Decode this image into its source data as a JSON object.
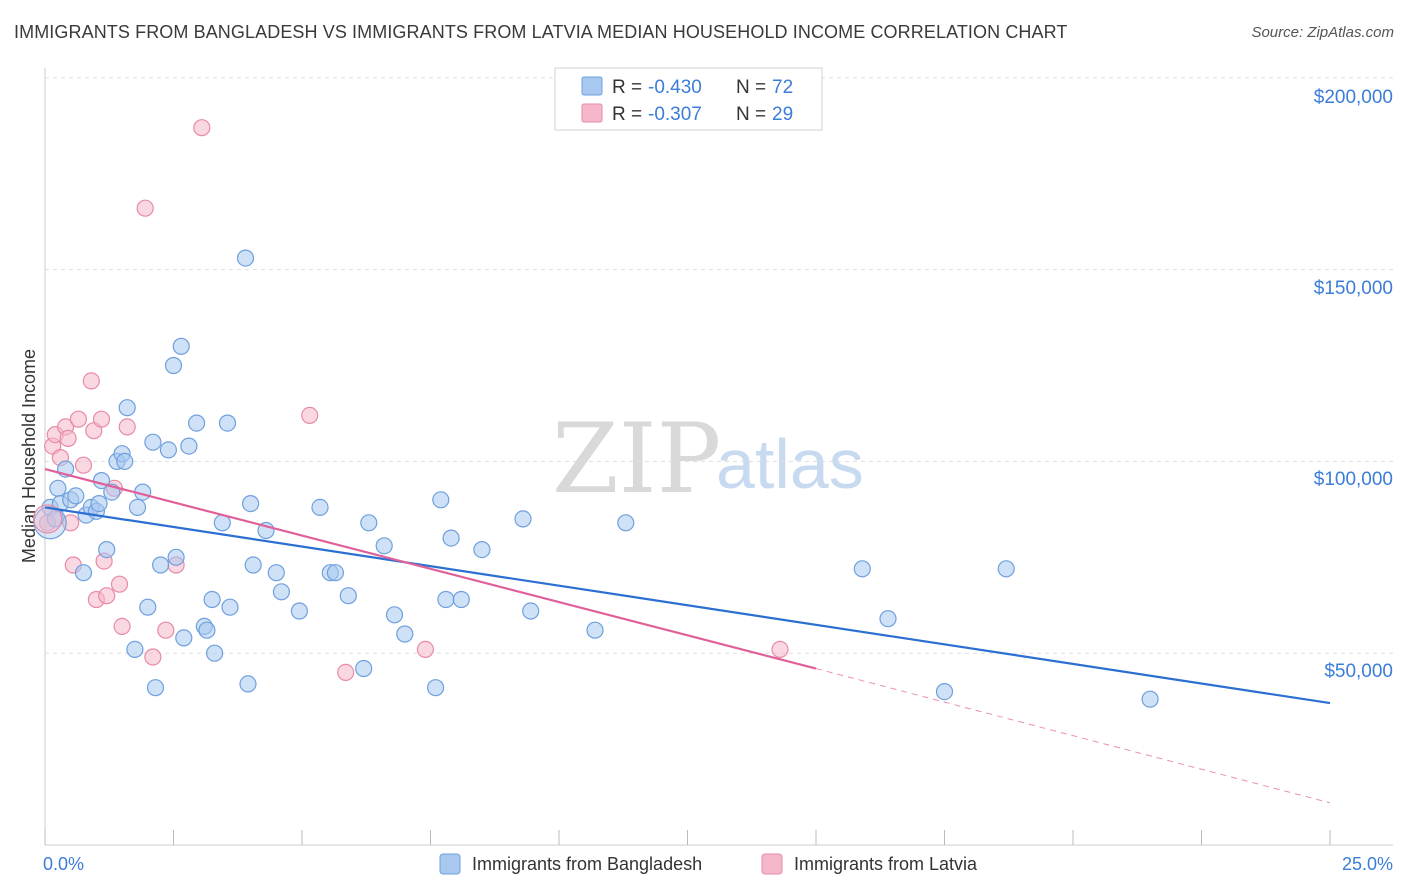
{
  "title": "IMMIGRANTS FROM BANGLADESH VS IMMIGRANTS FROM LATVIA MEDIAN HOUSEHOLD INCOME CORRELATION CHART",
  "source": "Source: ZipAtlas.com",
  "watermark": {
    "zip": "ZIP",
    "atlas": "atlas"
  },
  "colors": {
    "blue_fill": "#a8c8f0",
    "blue_stroke": "#6fa0dd",
    "blue_line": "#2a6fd1",
    "pink_fill": "#f5b8ca",
    "pink_stroke": "#e88aa7",
    "pink_line": "#e0609a",
    "grid": "#dddddd",
    "accent_text": "#3b7dd8"
  },
  "legend": {
    "rows": [
      {
        "r_label": "R =",
        "r_value": "-0.430",
        "n_label": "N =",
        "n_value": "72",
        "color": "#a8c8f0"
      },
      {
        "r_label": "R =",
        "r_value": "-0.307",
        "n_label": "N =",
        "n_value": "29",
        "color": "#f5b8ca"
      }
    ]
  },
  "chart_data": {
    "type": "scatter",
    "ylabel": "Median Household Income",
    "x_tick_labels": [
      "0.0%",
      "25.0%"
    ],
    "y_tick_labels": [
      "$50,000",
      "$100,000",
      "$150,000",
      "$200,000"
    ],
    "y_ticks": [
      50000,
      100000,
      150000,
      200000
    ],
    "xlim": [
      0,
      25
    ],
    "ylim": [
      0,
      205000
    ],
    "series": [
      {
        "name": "Immigrants from Bangladesh",
        "color": "#a8c8f0",
        "trend": {
          "x0": 0,
          "y0": 88000,
          "x1": 25,
          "y1": 37000,
          "dashed_from": null
        },
        "points": [
          [
            0.1,
            88000
          ],
          [
            0.2,
            85000
          ],
          [
            0.25,
            93000
          ],
          [
            0.3,
            89000
          ],
          [
            0.4,
            98000
          ],
          [
            0.5,
            90000
          ],
          [
            0.6,
            91000
          ],
          [
            0.75,
            71000
          ],
          [
            0.8,
            86000
          ],
          [
            0.9,
            88000
          ],
          [
            1.0,
            87000
          ],
          [
            1.05,
            89000
          ],
          [
            1.1,
            95000
          ],
          [
            1.2,
            77000
          ],
          [
            1.3,
            92000
          ],
          [
            1.4,
            100000
          ],
          [
            1.5,
            102000
          ],
          [
            1.55,
            100000
          ],
          [
            1.6,
            114000
          ],
          [
            1.75,
            51000
          ],
          [
            1.8,
            88000
          ],
          [
            1.9,
            92000
          ],
          [
            2.0,
            62000
          ],
          [
            2.1,
            105000
          ],
          [
            2.15,
            41000
          ],
          [
            2.25,
            73000
          ],
          [
            2.4,
            103000
          ],
          [
            2.5,
            125000
          ],
          [
            2.55,
            75000
          ],
          [
            2.65,
            130000
          ],
          [
            2.7,
            54000
          ],
          [
            2.8,
            104000
          ],
          [
            2.95,
            110000
          ],
          [
            3.1,
            57000
          ],
          [
            3.15,
            56000
          ],
          [
            3.25,
            64000
          ],
          [
            3.3,
            50000
          ],
          [
            3.45,
            84000
          ],
          [
            3.55,
            110000
          ],
          [
            3.6,
            62000
          ],
          [
            3.9,
            153000
          ],
          [
            3.95,
            42000
          ],
          [
            4.0,
            89000
          ],
          [
            4.05,
            73000
          ],
          [
            4.3,
            82000
          ],
          [
            4.5,
            71000
          ],
          [
            4.6,
            66000
          ],
          [
            4.95,
            61000
          ],
          [
            5.35,
            88000
          ],
          [
            5.55,
            71000
          ],
          [
            5.65,
            71000
          ],
          [
            5.9,
            65000
          ],
          [
            6.2,
            46000
          ],
          [
            6.3,
            84000
          ],
          [
            6.6,
            78000
          ],
          [
            6.8,
            60000
          ],
          [
            7.0,
            55000
          ],
          [
            7.6,
            41000
          ],
          [
            7.7,
            90000
          ],
          [
            7.8,
            64000
          ],
          [
            7.9,
            80000
          ],
          [
            8.1,
            64000
          ],
          [
            8.5,
            77000
          ],
          [
            9.3,
            85000
          ],
          [
            9.45,
            61000
          ],
          [
            10.7,
            56000
          ],
          [
            11.3,
            84000
          ],
          [
            15.9,
            72000
          ],
          [
            16.4,
            59000
          ],
          [
            17.5,
            40000
          ],
          [
            18.7,
            72000
          ],
          [
            21.5,
            38000
          ]
        ]
      },
      {
        "name": "Immigrants from Latvia",
        "color": "#f5b8ca",
        "trend": {
          "x0": 0,
          "y0": 98000,
          "x1": 15,
          "y1": 46000,
          "dashed_to_x": 25,
          "dashed_to_y": 11000
        },
        "points": [
          [
            0.05,
            84000
          ],
          [
            0.15,
            104000
          ],
          [
            0.2,
            107000
          ],
          [
            0.3,
            101000
          ],
          [
            0.4,
            109000
          ],
          [
            0.45,
            106000
          ],
          [
            0.5,
            84000
          ],
          [
            0.55,
            73000
          ],
          [
            0.65,
            111000
          ],
          [
            0.75,
            99000
          ],
          [
            0.9,
            121000
          ],
          [
            0.95,
            108000
          ],
          [
            1.0,
            64000
          ],
          [
            1.1,
            111000
          ],
          [
            1.15,
            74000
          ],
          [
            1.2,
            65000
          ],
          [
            1.35,
            93000
          ],
          [
            1.45,
            68000
          ],
          [
            1.5,
            57000
          ],
          [
            1.6,
            109000
          ],
          [
            1.95,
            166000
          ],
          [
            2.1,
            49000
          ],
          [
            2.35,
            56000
          ],
          [
            2.55,
            73000
          ],
          [
            3.05,
            187000
          ],
          [
            5.15,
            112000
          ],
          [
            5.85,
            45000
          ],
          [
            7.4,
            51000
          ],
          [
            14.3,
            51000
          ]
        ]
      }
    ]
  }
}
